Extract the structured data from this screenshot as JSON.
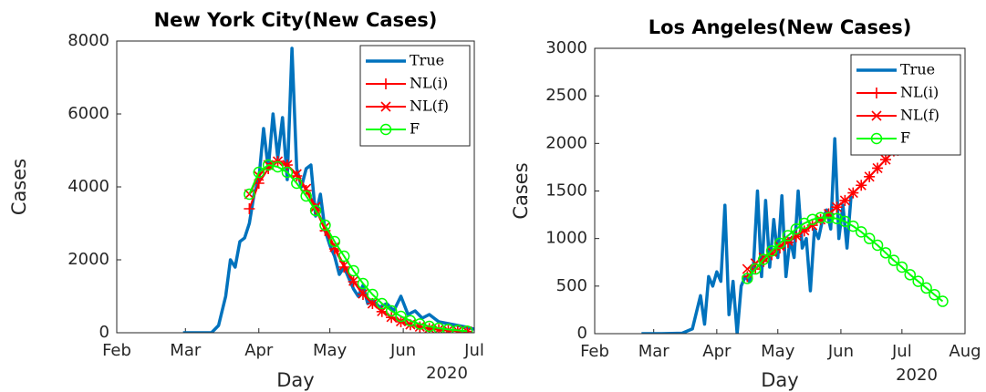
{
  "chart_data": [
    {
      "type": "line",
      "title": "New York City(New Cases)",
      "xlabel": "Day",
      "x_annotation": "2020",
      "ylabel": "Cases",
      "xlim": [
        32,
        183
      ],
      "xticks": [
        {
          "value": 32,
          "label": "Feb"
        },
        {
          "value": 61,
          "label": "Mar"
        },
        {
          "value": 92,
          "label": "Apr"
        },
        {
          "value": 122,
          "label": "May"
        },
        {
          "value": 153,
          "label": "Jun"
        },
        {
          "value": 183,
          "label": "Jul"
        }
      ],
      "ylim": [
        0,
        8000
      ],
      "yticks": [
        0,
        2000,
        4000,
        6000,
        8000
      ],
      "legend": "upper right",
      "series": [
        {
          "name": "True",
          "color": "#0072bd",
          "marker": "none",
          "x": [
            60,
            63,
            66,
            69,
            72,
            75,
            78,
            80,
            82,
            84,
            86,
            88,
            90,
            92,
            94,
            96,
            98,
            100,
            102,
            104,
            106,
            108,
            110,
            112,
            114,
            116,
            118,
            120,
            122,
            124,
            126,
            128,
            130,
            132,
            134,
            136,
            138,
            140,
            143,
            146,
            149,
            152,
            155,
            158,
            161,
            164,
            168,
            172,
            176,
            180,
            183
          ],
          "values": [
            0,
            0,
            0,
            0,
            0,
            200,
            1000,
            2000,
            1800,
            2500,
            2600,
            3000,
            3800,
            4200,
            5600,
            4500,
            6000,
            4800,
            5900,
            4200,
            7800,
            4500,
            4000,
            4500,
            4600,
            3200,
            3800,
            2800,
            2400,
            2100,
            1600,
            1800,
            1500,
            1200,
            1000,
            1300,
            800,
            900,
            700,
            800,
            600,
            1000,
            500,
            600,
            400,
            500,
            300,
            250,
            200,
            150,
            100
          ]
        },
        {
          "name": "NL(i)",
          "color": "#ff0000",
          "marker": "plus",
          "x": [
            88,
            92,
            96,
            100,
            104,
            108,
            112,
            116,
            120,
            124,
            128,
            132,
            136,
            140,
            144,
            148,
            152,
            156,
            160,
            164,
            168,
            172,
            176,
            180
          ],
          "values": [
            3400,
            4100,
            4500,
            4700,
            4600,
            4300,
            3900,
            3400,
            2800,
            2300,
            1800,
            1400,
            1050,
            800,
            580,
            420,
            300,
            220,
            160,
            115,
            85,
            60,
            45,
            35
          ]
        },
        {
          "name": "NL(f)",
          "color": "#ff0000",
          "marker": "cross",
          "x": [
            88,
            92,
            96,
            100,
            104,
            108,
            112,
            116,
            120,
            124,
            128,
            132,
            136,
            140,
            144,
            148,
            152,
            156,
            160,
            164,
            168,
            172,
            176,
            180
          ],
          "values": [
            3800,
            4300,
            4600,
            4700,
            4600,
            4350,
            3950,
            3450,
            2900,
            2350,
            1850,
            1420,
            1070,
            800,
            590,
            430,
            310,
            225,
            165,
            120,
            88,
            64,
            47,
            35
          ]
        },
        {
          "name": "F",
          "color": "#00ff00",
          "marker": "circle",
          "x": [
            88,
            92,
            96,
            100,
            104,
            108,
            112,
            116,
            120,
            124,
            128,
            132,
            136,
            140,
            144,
            148,
            152,
            156,
            160,
            164,
            168,
            172,
            176,
            180
          ],
          "values": [
            3800,
            4400,
            4600,
            4550,
            4400,
            4100,
            3750,
            3350,
            2950,
            2500,
            2100,
            1700,
            1350,
            1050,
            800,
            600,
            450,
            330,
            240,
            175,
            125,
            90,
            65,
            45
          ]
        }
      ]
    },
    {
      "type": "line",
      "title": "Los Angeles(New Cases)",
      "xlabel": "Day",
      "x_annotation": "2020",
      "ylabel": "Cases",
      "xlim": [
        32,
        214
      ],
      "xticks": [
        {
          "value": 32,
          "label": "Feb"
        },
        {
          "value": 61,
          "label": "Mar"
        },
        {
          "value": 92,
          "label": "Apr"
        },
        {
          "value": 122,
          "label": "May"
        },
        {
          "value": 153,
          "label": "Jun"
        },
        {
          "value": 183,
          "label": "Jul"
        },
        {
          "value": 214,
          "label": "Aug"
        }
      ],
      "ylim": [
        0,
        3000
      ],
      "yticks": [
        0,
        500,
        1000,
        1500,
        2000,
        2500,
        3000
      ],
      "legend": "upper right",
      "series": [
        {
          "name": "True",
          "color": "#0072bd",
          "marker": "none",
          "x": [
            55,
            65,
            75,
            80,
            84,
            86,
            88,
            90,
            92,
            94,
            96,
            98,
            100,
            102,
            104,
            106,
            108,
            110,
            112,
            114,
            116,
            118,
            120,
            122,
            124,
            126,
            128,
            130,
            132,
            134,
            136,
            138,
            140,
            142,
            144,
            146,
            148,
            150,
            152,
            154,
            156,
            158
          ],
          "values": [
            0,
            0,
            5,
            50,
            400,
            100,
            600,
            500,
            650,
            550,
            1350,
            200,
            550,
            0,
            500,
            600,
            550,
            700,
            1500,
            600,
            1400,
            700,
            1200,
            800,
            1450,
            600,
            1000,
            800,
            1500,
            900,
            1000,
            450,
            1100,
            1000,
            1200,
            1300,
            1100,
            2050,
            1000,
            1350,
            900,
            1450
          ]
        },
        {
          "name": "NL(i)",
          "color": "#ff0000",
          "marker": "plus",
          "x": [
            107,
            111,
            115,
            119,
            123,
            127,
            131,
            135,
            139,
            143,
            147,
            151,
            155,
            159,
            163,
            167,
            171,
            175,
            179
          ],
          "values": [
            600,
            680,
            760,
            830,
            900,
            960,
            1020,
            1080,
            1140,
            1200,
            1260,
            1330,
            1400,
            1480,
            1560,
            1650,
            1740,
            1830,
            1920
          ]
        },
        {
          "name": "NL(f)",
          "color": "#ff0000",
          "marker": "cross",
          "x": [
            107,
            111,
            115,
            119,
            123,
            127,
            131,
            135,
            139,
            143,
            147,
            151,
            155,
            159,
            163,
            167,
            171,
            175,
            179
          ],
          "values": [
            680,
            740,
            800,
            860,
            920,
            975,
            1030,
            1085,
            1140,
            1200,
            1260,
            1330,
            1400,
            1480,
            1560,
            1650,
            1740,
            1830,
            1920
          ]
        },
        {
          "name": "F",
          "color": "#00ff00",
          "marker": "circle",
          "x": [
            107,
            111,
            115,
            119,
            123,
            127,
            131,
            135,
            139,
            143,
            147,
            151,
            155,
            159,
            163,
            167,
            171,
            175,
            179,
            183,
            187,
            191,
            195,
            199,
            203
          ],
          "values": [
            580,
            680,
            780,
            870,
            950,
            1030,
            1100,
            1160,
            1200,
            1220,
            1220,
            1210,
            1180,
            1130,
            1070,
            1000,
            930,
            850,
            770,
            700,
            620,
            550,
            480,
            410,
            340
          ]
        }
      ]
    }
  ]
}
